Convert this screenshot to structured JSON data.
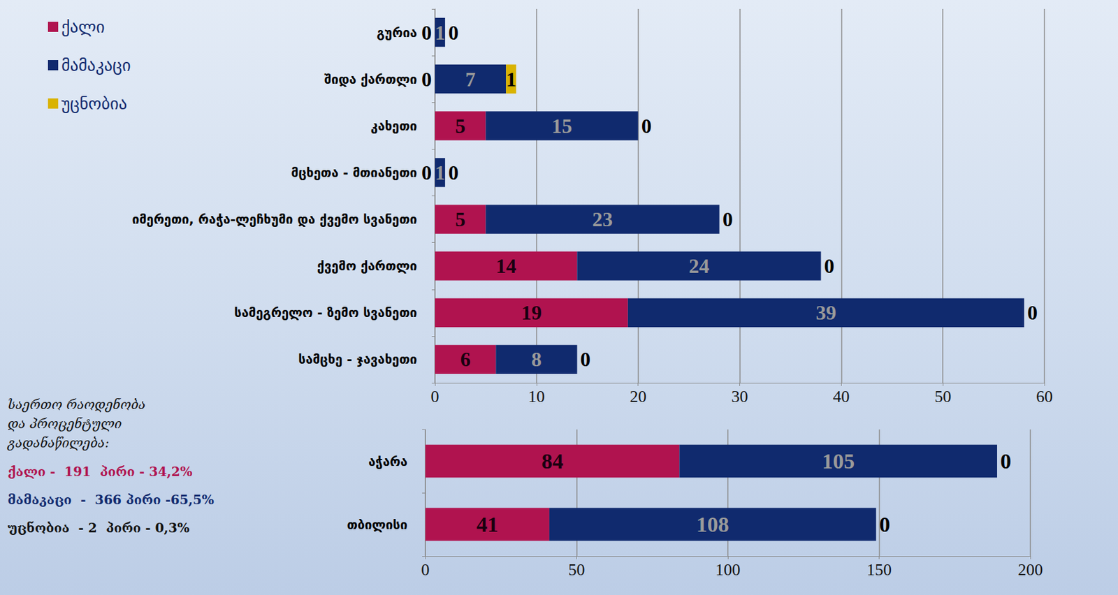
{
  "chart_data": [
    {
      "type": "bar",
      "orientation": "horizontal",
      "stacked": true,
      "data_labels": true,
      "grid": true,
      "legend": "top-left",
      "categories": [
        "გურია",
        "შიდა ქართლი",
        "კახეთი",
        "მცხეთა - მთიანეთი",
        "იმერეთი, რაჭა-ლეჩხუმი და ქვემო სვანეთი",
        "ქვემო ქართლი",
        "სამეგრელო - ზემო სვანეთი",
        "სამცხე - ჯავახეთი"
      ],
      "series": [
        {
          "name": "ქალი",
          "color": "#b0134f",
          "values": [
            0,
            0,
            5,
            0,
            5,
            14,
            19,
            6
          ]
        },
        {
          "name": "მამაკაცი",
          "color": "#102a6e",
          "values": [
            1,
            7,
            15,
            1,
            23,
            24,
            39,
            8
          ]
        },
        {
          "name": "უცნობია",
          "color": "#d9b300",
          "values": [
            0,
            1,
            0,
            0,
            0,
            0,
            0,
            0
          ]
        }
      ],
      "xlim": [
        0,
        60
      ],
      "xticks": [
        0,
        10,
        20,
        30,
        40,
        50,
        60
      ]
    },
    {
      "type": "bar",
      "orientation": "horizontal",
      "stacked": true,
      "data_labels": true,
      "grid": true,
      "categories": [
        "აჭარა",
        "თბილისი"
      ],
      "series": [
        {
          "name": "ქალი",
          "color": "#b0134f",
          "values": [
            84,
            41
          ]
        },
        {
          "name": "მამაკაცი",
          "color": "#102a6e",
          "values": [
            105,
            108
          ]
        },
        {
          "name": "უცნობია",
          "color": "#d9b300",
          "values": [
            0,
            0
          ]
        }
      ],
      "xlim": [
        0,
        200
      ],
      "xticks": [
        0,
        50,
        100,
        150,
        200
      ]
    }
  ],
  "summary": {
    "heading": "საერთო რაოდენობა და პროცენტული გადანაწილება:",
    "lines": [
      "ქალი -  191  პირი - 34,2%",
      "მამაკაცი  -  366 პირი -65,5%",
      "უცნობია  - 2  პირი - 0,3%"
    ]
  }
}
